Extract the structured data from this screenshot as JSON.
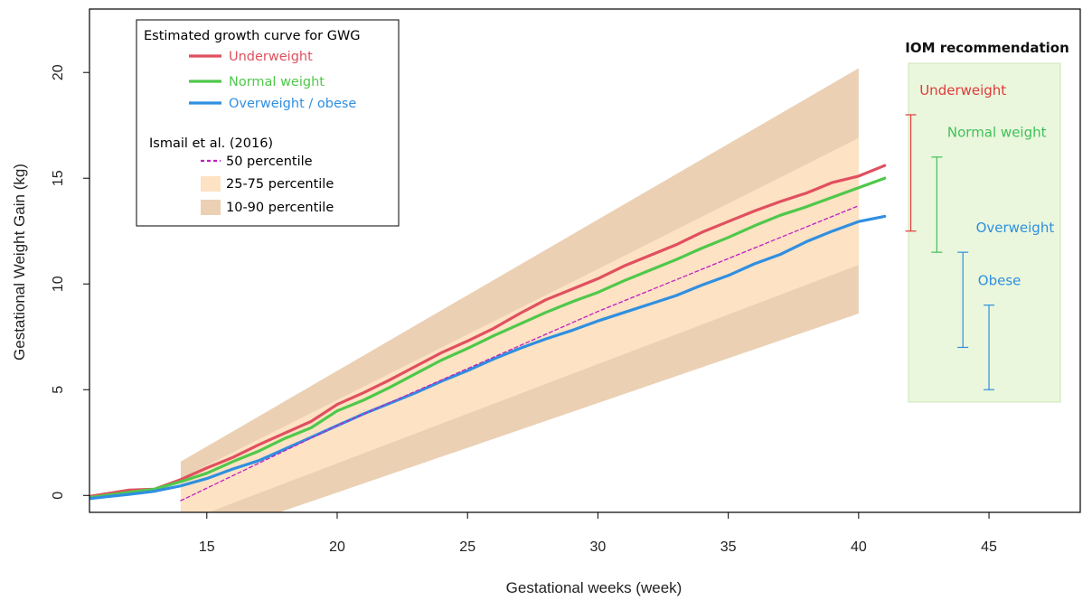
{
  "chart_data": {
    "type": "line",
    "xlabel": "Gestational weeks (week)",
    "ylabel": "Gestational Weight Gain (kg)",
    "xlim": [
      10.5,
      48.5
    ],
    "ylim": [
      -0.8,
      23
    ],
    "x_ticks": [
      15,
      20,
      25,
      30,
      35,
      40,
      45
    ],
    "y_ticks": [
      0,
      5,
      10,
      15,
      20
    ],
    "grid": false,
    "legend_position": "top-left",
    "legend": {
      "title1": "Estimated growth curve for GWG",
      "title2": "Ismail et al.  (2016)",
      "entries": [
        {
          "label": "Underweight",
          "color": "#e0505f",
          "kind": "line"
        },
        {
          "label": "Normal weight",
          "color": "#4fc84a",
          "kind": "line"
        },
        {
          "label": "Overweight / obese",
          "color": "#2f8fe0",
          "kind": "line"
        },
        {
          "label": "50 percentile",
          "color": "#c020c0",
          "kind": "dashed"
        },
        {
          "label": "25-75 percentile",
          "color": "#fde2c4",
          "kind": "fill"
        },
        {
          "label": "10-90 percentile",
          "color": "#ebd0b4",
          "kind": "fill"
        }
      ]
    },
    "series": [
      {
        "name": "Underweight",
        "color": "#e0505f",
        "x": [
          10.5,
          12,
          13,
          14,
          15,
          16,
          17,
          18,
          19,
          20,
          21,
          22,
          23,
          24,
          25,
          26,
          27,
          28,
          29,
          30,
          31,
          32,
          33,
          34,
          35,
          36,
          37,
          38,
          39,
          40,
          41
        ],
        "y": [
          -0.05,
          0.25,
          0.3,
          0.75,
          1.3,
          1.8,
          2.4,
          2.95,
          3.5,
          4.3,
          4.85,
          5.45,
          6.1,
          6.75,
          7.3,
          7.9,
          8.6,
          9.25,
          9.75,
          10.25,
          10.85,
          11.35,
          11.85,
          12.45,
          12.95,
          13.45,
          13.9,
          14.3,
          14.8,
          15.1,
          15.6
        ]
      },
      {
        "name": "Normal weight",
        "color": "#4fc84a",
        "x": [
          10.5,
          12,
          13,
          14,
          15,
          16,
          17,
          18,
          19,
          20,
          21,
          22,
          23,
          24,
          25,
          26,
          27,
          28,
          29,
          30,
          31,
          32,
          33,
          34,
          35,
          36,
          37,
          38,
          39,
          40,
          41
        ],
        "y": [
          -0.1,
          0.15,
          0.3,
          0.65,
          1.05,
          1.6,
          2.1,
          2.7,
          3.2,
          4.0,
          4.5,
          5.1,
          5.75,
          6.4,
          6.95,
          7.55,
          8.1,
          8.65,
          9.15,
          9.6,
          10.15,
          10.65,
          11.15,
          11.7,
          12.2,
          12.75,
          13.25,
          13.65,
          14.1,
          14.55,
          15.0
        ]
      },
      {
        "name": "Overweight / obese",
        "color": "#2f8fe0",
        "x": [
          10.5,
          12,
          13,
          14,
          15,
          16,
          17,
          18,
          19,
          20,
          21,
          22,
          23,
          24,
          25,
          26,
          27,
          28,
          29,
          30,
          31,
          32,
          33,
          34,
          35,
          36,
          37,
          38,
          39,
          40,
          41
        ],
        "y": [
          -0.15,
          0.05,
          0.2,
          0.45,
          0.8,
          1.25,
          1.65,
          2.2,
          2.75,
          3.3,
          3.85,
          4.35,
          4.85,
          5.4,
          5.9,
          6.45,
          6.95,
          7.4,
          7.8,
          8.25,
          8.65,
          9.05,
          9.45,
          9.95,
          10.4,
          10.95,
          11.4,
          12.0,
          12.5,
          12.95,
          13.2
        ]
      },
      {
        "name": "50 percentile",
        "color": "#c020c0",
        "dashed": true,
        "x": [
          14,
          20,
          25,
          30,
          35,
          40
        ],
        "y": [
          -0.25,
          3.3,
          6.0,
          8.7,
          11.2,
          13.7
        ]
      }
    ],
    "bands": [
      {
        "name": "10-90 percentile",
        "color": "#ebd0b4",
        "x": [
          14,
          40
        ],
        "lower": [
          -2.4,
          8.6
        ],
        "upper": [
          1.6,
          20.2
        ]
      },
      {
        "name": "25-75 percentile",
        "color": "#fde2c4",
        "x": [
          14,
          40
        ],
        "lower": [
          -1.3,
          10.9
        ],
        "upper": [
          0.8,
          16.9
        ]
      }
    ],
    "iom_recommendation": {
      "title": "IOM recommendation",
      "box_x": [
        46.2,
        52.2
      ],
      "box_y": [
        4.3,
        20.3
      ],
      "box_color": "#eaf7dc",
      "ranges": [
        {
          "label": "Underweight",
          "x": 42,
          "low": 12.5,
          "high": 18.0,
          "color": "#e03a3a",
          "label_y": 18.95,
          "label_x": 44.0
        },
        {
          "label": "Normal weight",
          "x": 43,
          "low": 11.5,
          "high": 16.0,
          "color": "#3fc05a",
          "label_y": 16.95,
          "label_x": 45.3
        },
        {
          "label": "Overweight",
          "x": 44,
          "low": 7.0,
          "high": 11.5,
          "color": "#2f8fe0",
          "label_y": 12.45,
          "label_x": 46.0
        },
        {
          "label": "Obese",
          "x": 45,
          "low": 5.0,
          "high": 9.0,
          "color": "#2f8fe0",
          "label_y": 9.95,
          "label_x": 45.4
        }
      ]
    }
  }
}
